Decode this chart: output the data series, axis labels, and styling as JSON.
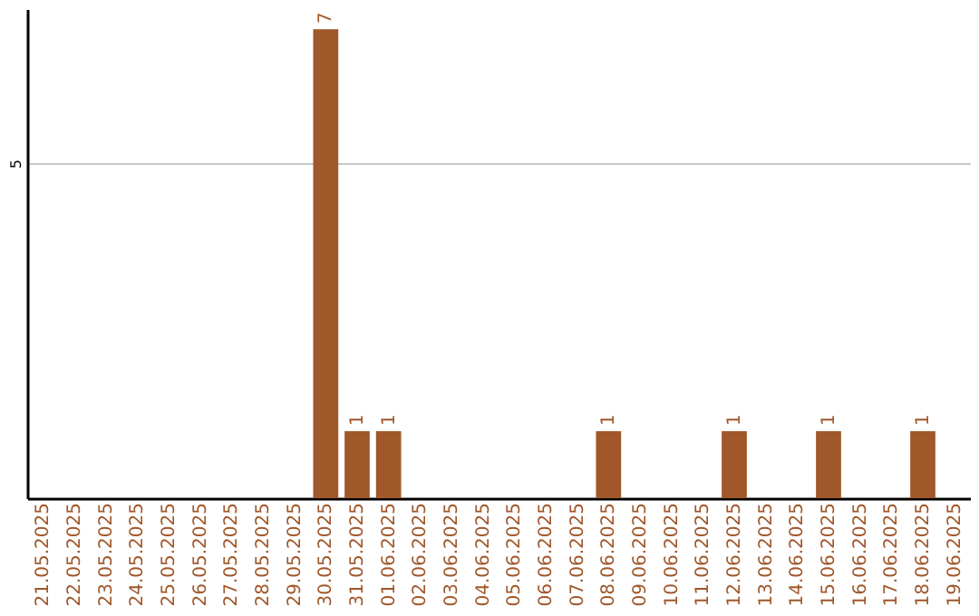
{
  "chart_data": {
    "type": "bar",
    "categories": [
      "21.05.2025",
      "22.05.2025",
      "23.05.2025",
      "24.05.2025",
      "25.05.2025",
      "26.05.2025",
      "27.05.2025",
      "28.05.2025",
      "29.05.2025",
      "30.05.2025",
      "31.05.2025",
      "01.06.2025",
      "02.06.2025",
      "03.06.2025",
      "04.06.2025",
      "05.06.2025",
      "06.06.2025",
      "07.06.2025",
      "08.06.2025",
      "09.06.2025",
      "10.06.2025",
      "11.06.2025",
      "12.06.2025",
      "13.06.2025",
      "14.06.2025",
      "15.06.2025",
      "16.06.2025",
      "17.06.2025",
      "18.06.2025",
      "19.06.2025"
    ],
    "values": [
      0,
      0,
      0,
      0,
      0,
      0,
      0,
      0,
      0,
      7,
      1,
      1,
      0,
      0,
      0,
      0,
      0,
      0,
      1,
      0,
      0,
      0,
      1,
      0,
      0,
      1,
      0,
      0,
      1,
      0
    ],
    "value_labels": [
      null,
      null,
      null,
      null,
      null,
      null,
      null,
      null,
      null,
      "7",
      "1",
      "1",
      null,
      null,
      null,
      null,
      null,
      null,
      "1",
      null,
      null,
      null,
      "1",
      null,
      null,
      "1",
      null,
      null,
      "1",
      null
    ],
    "color": "#a0572a",
    "ylim": [
      0,
      7.3
    ],
    "yticks": [
      5
    ],
    "grid": "y"
  }
}
